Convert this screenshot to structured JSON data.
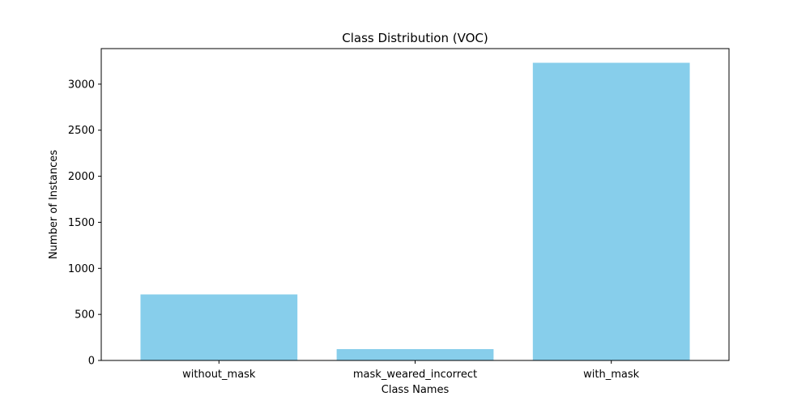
{
  "chart_data": {
    "type": "bar",
    "title": "Class Distribution (VOC)",
    "xlabel": "Class Names",
    "ylabel": "Number of Instances",
    "categories": [
      "without_mask",
      "mask_weared_incorrect",
      "with_mask"
    ],
    "values": [
      717,
      123,
      3232
    ],
    "ylim": [
      0,
      3386
    ],
    "yticks": [
      0,
      500,
      1000,
      1500,
      2000,
      2500,
      3000
    ],
    "bar_color": "#87ceeb",
    "grid": false,
    "legend": "none"
  }
}
